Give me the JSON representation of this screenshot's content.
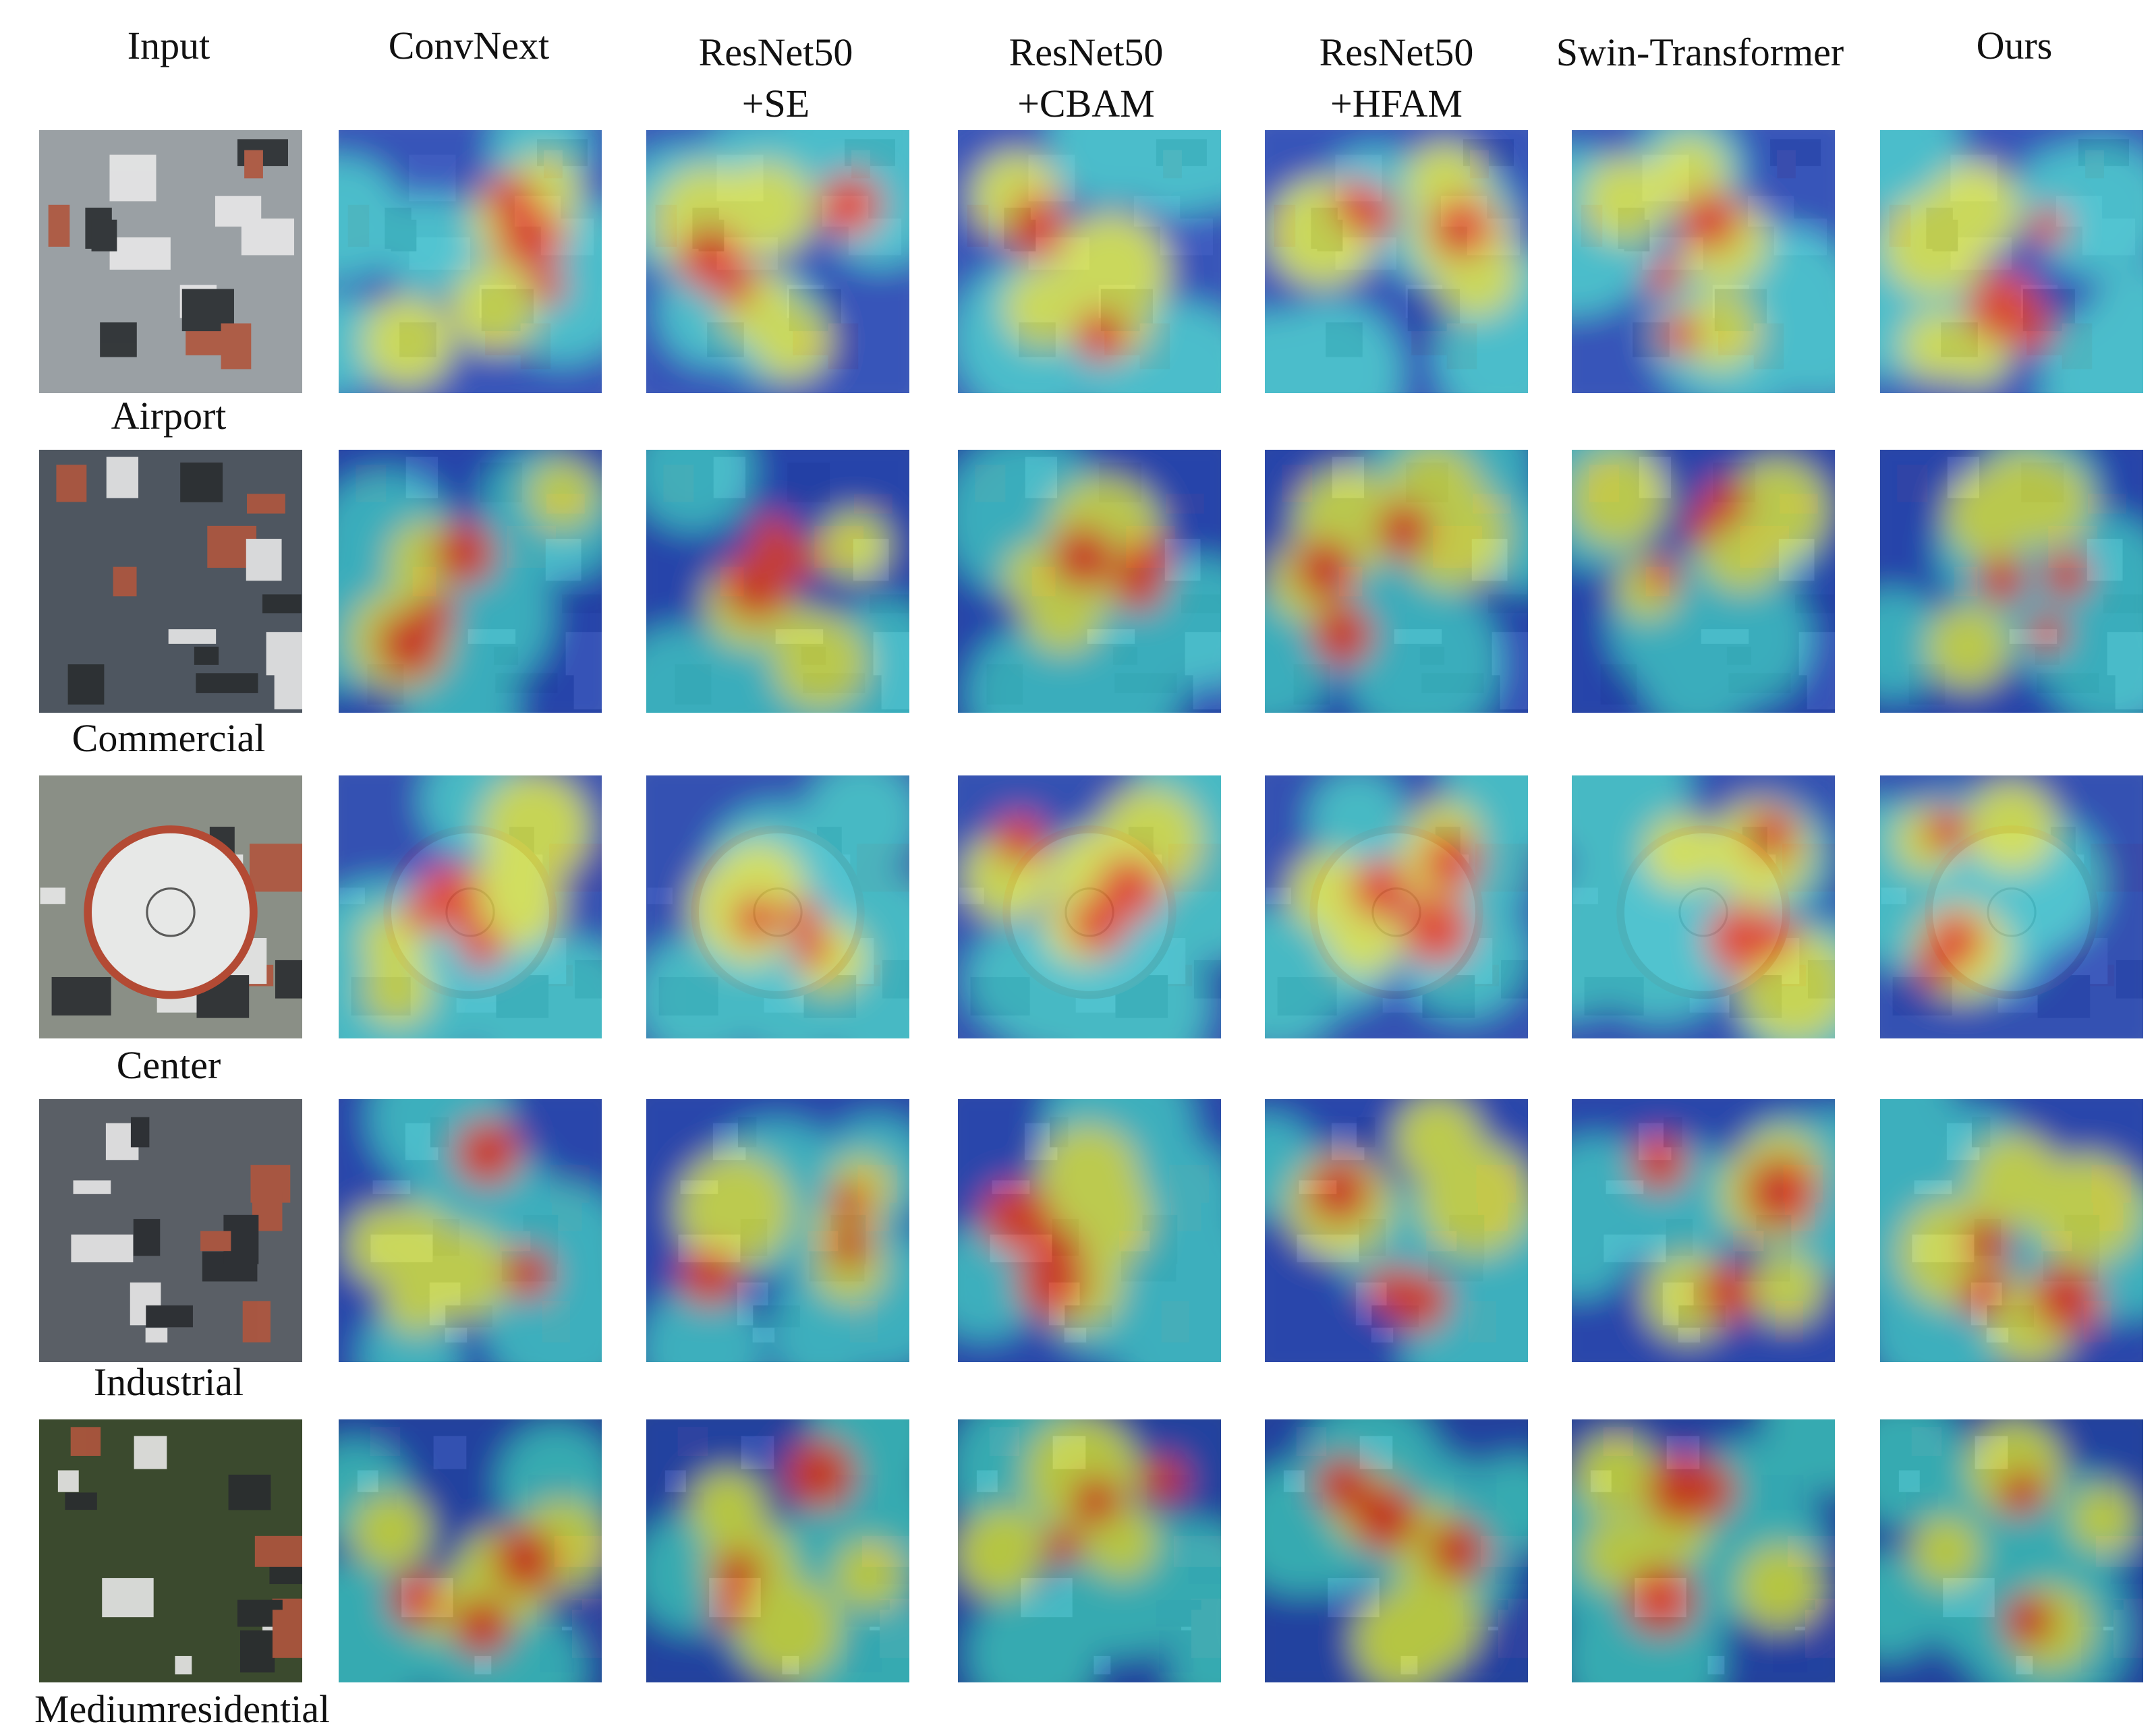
{
  "headers": [
    {
      "line1": "",
      "line2": "Input"
    },
    {
      "line1": "",
      "line2": "ConvNext"
    },
    {
      "line1": "ResNet50",
      "line2": "+SE"
    },
    {
      "line1": "ResNet50",
      "line2": "+CBAM"
    },
    {
      "line1": "ResNet50",
      "line2": "+HFAM"
    },
    {
      "line1": "",
      "line2": "Swin-Transformer"
    },
    {
      "line1": "",
      "line2": "Ours"
    }
  ],
  "rows": [
    {
      "label": "Airport"
    },
    {
      "label": "Commercial"
    },
    {
      "label": "Center"
    },
    {
      "label": "Industrial"
    },
    {
      "label": "Mediumresidential"
    }
  ],
  "colors": {
    "heat_low": "#1f3fbf",
    "heat_mid_low": "#35c6d6",
    "heat_mid": "#d8e84a",
    "heat_high": "#e8381c"
  }
}
